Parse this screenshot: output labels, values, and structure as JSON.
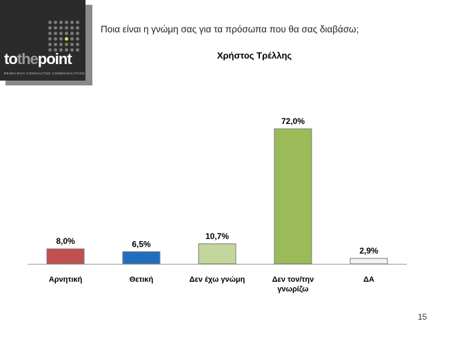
{
  "logo": {
    "brand_parts": [
      "to",
      "the",
      "point"
    ],
    "tagline": "RESEARCH  CONSULTING  COMMUNICATION",
    "bg_color": "#2b2b2b",
    "accent_color": "#e8e84a"
  },
  "question": "Ποια είναι η γνώμη σας για τα πρόσωπα που θα σας διαβάσω;",
  "person_name": "Χρήστος Τρέλλης",
  "page_number": "15",
  "chart_data": {
    "type": "bar",
    "categories": [
      "Αρνητική",
      "Θετική",
      "Δεν έχω γνώμη",
      "Δεν τον/την γνωρίζω",
      "ΔΑ"
    ],
    "category_lines": [
      [
        "Αρνητική"
      ],
      [
        "Θετική"
      ],
      [
        "Δεν έχω γνώμη"
      ],
      [
        "Δεν τον/την",
        "γνωρίζω"
      ],
      [
        "ΔΑ"
      ]
    ],
    "values": [
      8.0,
      6.5,
      10.7,
      72.0,
      2.9
    ],
    "value_labels": [
      "8,0%",
      "6,5%",
      "10,7%",
      "72,0%",
      "2,9%"
    ],
    "colors": [
      "#c0504d",
      "#1f6fbf",
      "#c3d69b",
      "#9bbb59",
      "#f2f2f2"
    ],
    "title": "",
    "xlabel": "",
    "ylabel": "",
    "ylim": [
      0,
      72
    ],
    "grid": false,
    "legend": "none"
  }
}
